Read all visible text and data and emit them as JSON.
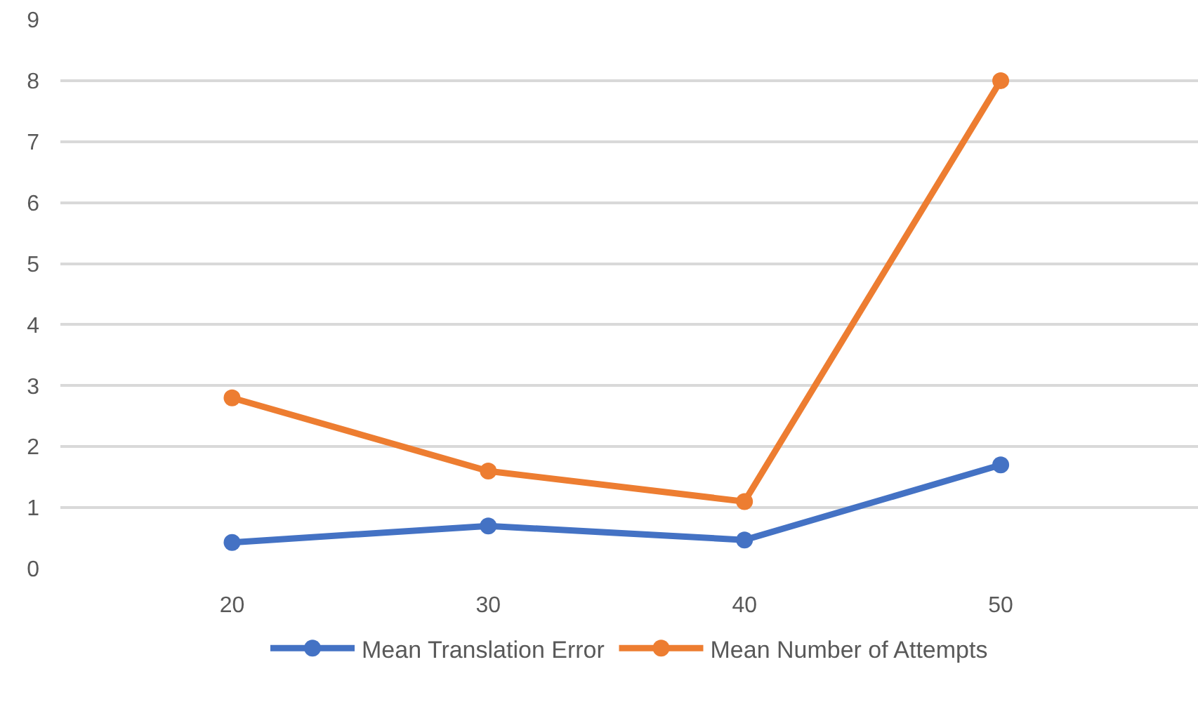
{
  "chart_data": {
    "type": "line",
    "categories": [
      "20",
      "30",
      "40",
      "50"
    ],
    "series": [
      {
        "name": "Mean Translation Error",
        "color": "#4472c4",
        "values": [
          0.43,
          0.7,
          0.47,
          1.7
        ]
      },
      {
        "name": "Mean Number of Attempts",
        "color": "#ed7d31",
        "values": [
          2.8,
          1.6,
          1.1,
          8.0
        ]
      }
    ],
    "ylim": [
      0,
      9
    ],
    "yticks": [
      0,
      1,
      2,
      3,
      4,
      5,
      6,
      7,
      8,
      9
    ],
    "grid": "y",
    "legend": "bottom",
    "marker": "circle",
    "line_style": "solid"
  }
}
